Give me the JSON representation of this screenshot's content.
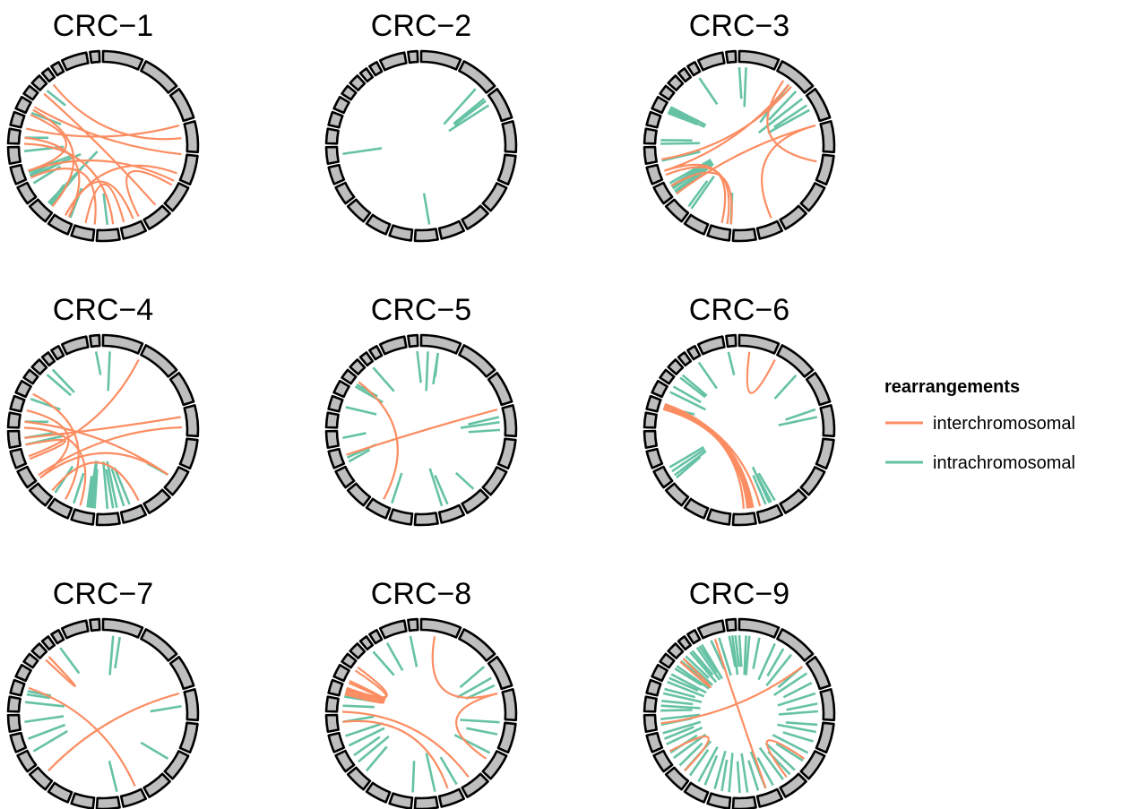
{
  "panels": [
    {
      "title": "CRC−1",
      "inter": [
        [
          5.2,
          7.0
        ],
        [
          4.8,
          10.5
        ],
        [
          7.8,
          9.5
        ],
        [
          7.3,
          10.5
        ],
        [
          10.3,
          15.5
        ],
        [
          3.5,
          20.2
        ],
        [
          3.0,
          16.0
        ],
        [
          4.0,
          17.8
        ],
        [
          13.5,
          5.0
        ],
        [
          8.2,
          15.0
        ],
        [
          17.5,
          11.2
        ],
        [
          6.2,
          19.0
        ],
        [
          13.0,
          9.0
        ],
        [
          17.0,
          13.5
        ]
      ],
      "intra": [
        [
          11.4,
          0.3
        ],
        [
          11.3,
          0.6
        ],
        [
          11.5,
          0.9
        ],
        [
          13.2,
          0.3
        ],
        [
          13.0,
          0.5
        ],
        [
          13.1,
          0.7
        ],
        [
          12.8,
          0.4
        ],
        [
          13.4,
          0.6
        ],
        [
          10.2,
          0.4
        ],
        [
          14.7,
          0.5
        ],
        [
          8.5,
          0.4
        ],
        [
          15.5,
          0.3
        ],
        [
          17.2,
          0.4
        ],
        [
          19.5,
          0.3
        ]
      ]
    },
    {
      "title": "CRC−2",
      "inter": [],
      "intra": [
        [
          2.0,
          0.5
        ],
        [
          2.3,
          0.6
        ],
        [
          1.7,
          0.6
        ],
        [
          2.1,
          0.5
        ],
        [
          8.3,
          0.4
        ],
        [
          14.5,
          0.5
        ]
      ]
    },
    {
      "title": "CRC−3",
      "inter": [
        [
          4.3,
          1.3
        ],
        [
          3.0,
          7.2
        ],
        [
          3.0,
          12.0
        ],
        [
          12.6,
          9.0
        ],
        [
          13.2,
          9.2
        ],
        [
          13.5,
          9.5
        ],
        [
          13.5,
          1.5
        ],
        [
          14.1,
          1.6
        ]
      ],
      "intra": [
        [
          1.8,
          0.5
        ],
        [
          1.5,
          0.6
        ],
        [
          2.0,
          0.7
        ],
        [
          2.3,
          0.5
        ],
        [
          2.5,
          0.6
        ],
        [
          9.0,
          0.4
        ],
        [
          12.0,
          0.6
        ],
        [
          12.2,
          0.6
        ],
        [
          12.4,
          0.6
        ],
        [
          12.6,
          0.6
        ],
        [
          12.8,
          0.6
        ],
        [
          12.1,
          0.5
        ],
        [
          12.5,
          0.5
        ],
        [
          11.2,
          0.4
        ],
        [
          11.0,
          0.5
        ],
        [
          15.0,
          0.5
        ],
        [
          15.3,
          0.4
        ],
        [
          17.2,
          0.4
        ],
        [
          17.4,
          0.5
        ],
        [
          17.6,
          0.4
        ],
        [
          17.8,
          0.5
        ],
        [
          17.3,
          0.4
        ],
        [
          17.5,
          0.4
        ],
        [
          17.7,
          0.4
        ],
        [
          24.2,
          0.5
        ],
        [
          24.0,
          0.4
        ],
        [
          21.5,
          0.4
        ],
        [
          14.0,
          0.5
        ]
      ]
    },
    {
      "title": "CRC−4",
      "inter": [
        [
          14.0,
          13.2
        ],
        [
          13.4,
          1.0
        ],
        [
          12.2,
          3.7
        ],
        [
          11.2,
          7.0
        ],
        [
          9.8,
          15.0
        ],
        [
          15.5,
          5.5
        ],
        [
          17.5,
          10.5
        ],
        [
          16.2,
          12.0
        ],
        [
          14.5,
          3.3
        ],
        [
          5.5,
          12.0
        ]
      ],
      "intra": [
        [
          7.5,
          0.5
        ],
        [
          8.0,
          0.6
        ],
        [
          8.5,
          0.6
        ],
        [
          8.2,
          0.5
        ],
        [
          7.8,
          0.5
        ],
        [
          9.1,
          0.5
        ],
        [
          9.2,
          0.6
        ],
        [
          9.0,
          0.5
        ],
        [
          9.4,
          0.4
        ],
        [
          9.3,
          0.6
        ],
        [
          14.5,
          0.4
        ],
        [
          14.0,
          0.5
        ],
        [
          11.0,
          0.4
        ],
        [
          10.0,
          0.4
        ],
        [
          15.5,
          0.3
        ],
        [
          17.0,
          0.4
        ],
        [
          20.0,
          0.4
        ],
        [
          19.5,
          0.4
        ],
        [
          23.5,
          0.3
        ],
        [
          24.2,
          0.5
        ],
        [
          5.5,
          0.3
        ]
      ]
    },
    {
      "title": "CRC−5",
      "inter": [
        [
          18.7,
          10.5
        ],
        [
          13.5,
          3.0
        ]
      ],
      "intra": [
        [
          23.9,
          0.4
        ],
        [
          24.2,
          0.5
        ],
        [
          24.5,
          0.4
        ],
        [
          0.5,
          0.3
        ],
        [
          3.5,
          0.5
        ],
        [
          3.3,
          0.4
        ],
        [
          3.8,
          0.4
        ],
        [
          6.2,
          0.3
        ],
        [
          7.5,
          0.4
        ],
        [
          7.8,
          0.5
        ],
        [
          10.0,
          0.4
        ],
        [
          13.0,
          0.3
        ],
        [
          13.3,
          0.4
        ],
        [
          14.5,
          0.3
        ],
        [
          16.5,
          0.4
        ],
        [
          18.0,
          0.4
        ],
        [
          18.3,
          0.3
        ],
        [
          20.5,
          0.4
        ]
      ]
    },
    {
      "title": "CRC−6",
      "inter": [
        [
          0.3,
          1.0
        ],
        [
          8.5,
          16.5
        ],
        [
          8.2,
          16.5
        ],
        [
          8.0,
          16.8
        ],
        [
          7.8,
          16.7
        ],
        [
          8.3,
          16.3
        ],
        [
          8.1,
          16.4
        ]
      ],
      "intra": [
        [
          1.8,
          0.4
        ],
        [
          3.0,
          0.4
        ],
        [
          3.3,
          0.5
        ],
        [
          7.0,
          0.4
        ],
        [
          7.2,
          0.4
        ],
        [
          7.5,
          0.4
        ],
        [
          7.3,
          0.5
        ],
        [
          12.5,
          0.5
        ],
        [
          12.0,
          0.4
        ],
        [
          12.2,
          0.5
        ],
        [
          12.8,
          0.5
        ],
        [
          16.5,
          0.4
        ],
        [
          17.7,
          0.5
        ],
        [
          18.0,
          0.4
        ],
        [
          19.0,
          0.4
        ],
        [
          19.4,
          0.4
        ],
        [
          21.4,
          0.4
        ],
        [
          23.0,
          0.3
        ]
      ]
    },
    {
      "title": "CRC−7",
      "inter": [
        [
          3.0,
          11.5
        ],
        [
          7.2,
          16.8
        ],
        [
          19.3,
          19.8
        ]
      ],
      "intra": [
        [
          0.5,
          0.4
        ],
        [
          0.3,
          0.5
        ],
        [
          3.5,
          0.4
        ],
        [
          5.5,
          0.4
        ],
        [
          8.0,
          0.4
        ],
        [
          12.8,
          0.5
        ],
        [
          13.5,
          0.5
        ],
        [
          14.5,
          0.5
        ],
        [
          15.8,
          0.5
        ],
        [
          16.2,
          0.3
        ],
        [
          16.5,
          0.3
        ],
        [
          21.0,
          0.4
        ]
      ]
    },
    {
      "title": "CRC−8",
      "inter": [
        [
          0.4,
          3.0
        ],
        [
          5.5,
          3.0
        ],
        [
          16.7,
          16.3
        ],
        [
          16.5,
          17.0
        ],
        [
          6.5,
          15.0
        ],
        [
          7.5,
          14.5
        ],
        [
          16.7,
          18.0
        ],
        [
          16.8,
          18.5
        ],
        [
          16.2,
          16.8
        ],
        [
          17.2,
          16.6
        ]
      ],
      "intra": [
        [
          2.0,
          0.4
        ],
        [
          2.5,
          0.5
        ],
        [
          2.8,
          0.4
        ],
        [
          4.0,
          0.5
        ],
        [
          4.5,
          0.4
        ],
        [
          5.2,
          0.5
        ],
        [
          7.0,
          0.4
        ],
        [
          8.0,
          0.5
        ],
        [
          9.0,
          0.4
        ],
        [
          11.5,
          0.4
        ],
        [
          12.0,
          0.5
        ],
        [
          12.5,
          0.4
        ],
        [
          13.0,
          0.5
        ],
        [
          13.7,
          0.5
        ],
        [
          14.5,
          0.4
        ],
        [
          15.5,
          0.4
        ],
        [
          16.5,
          0.4
        ],
        [
          16.0,
          0.4
        ],
        [
          20.5,
          0.4
        ],
        [
          22.0,
          0.4
        ],
        [
          23.0,
          0.4
        ]
      ]
    },
    {
      "title": "CRC−9",
      "inter": [
        [
          22.5,
          7.5
        ],
        [
          14.4,
          2.0
        ],
        [
          6.5,
          5.5
        ],
        [
          19.0,
          19.5
        ],
        [
          12.8,
          11.5
        ]
      ],
      "intra": [
        [
          0.0,
          0.4
        ],
        [
          0.3,
          0.5
        ],
        [
          0.6,
          0.4
        ],
        [
          1.0,
          0.5
        ],
        [
          1.3,
          0.4
        ],
        [
          1.6,
          0.5
        ],
        [
          2.0,
          0.4
        ],
        [
          2.3,
          0.5
        ],
        [
          2.7,
          0.4
        ],
        [
          3.0,
          0.5
        ],
        [
          3.4,
          0.4
        ],
        [
          3.7,
          0.5
        ],
        [
          4.1,
          0.4
        ],
        [
          4.4,
          0.5
        ],
        [
          4.8,
          0.4
        ],
        [
          5.2,
          0.5
        ],
        [
          5.6,
          0.4
        ],
        [
          6.0,
          0.5
        ],
        [
          6.3,
          0.4
        ],
        [
          6.7,
          0.5
        ],
        [
          7.1,
          0.4
        ],
        [
          7.5,
          0.5
        ],
        [
          7.9,
          0.4
        ],
        [
          8.3,
          0.5
        ],
        [
          8.7,
          0.4
        ],
        [
          9.1,
          0.5
        ],
        [
          9.5,
          0.4
        ],
        [
          9.9,
          0.5
        ],
        [
          10.3,
          0.4
        ],
        [
          10.7,
          0.5
        ],
        [
          11.1,
          0.4
        ],
        [
          11.5,
          0.5
        ],
        [
          11.9,
          0.4
        ],
        [
          12.3,
          0.5
        ],
        [
          12.7,
          0.4
        ],
        [
          13.1,
          0.5
        ],
        [
          13.5,
          0.4
        ],
        [
          13.9,
          0.5
        ],
        [
          14.3,
          0.4
        ],
        [
          14.7,
          0.5
        ],
        [
          15.1,
          0.4
        ],
        [
          15.5,
          0.5
        ],
        [
          15.9,
          0.4
        ],
        [
          16.3,
          0.5
        ],
        [
          16.7,
          0.4
        ],
        [
          17.1,
          0.5
        ],
        [
          17.5,
          0.4
        ],
        [
          17.9,
          0.5
        ],
        [
          18.3,
          0.4
        ],
        [
          18.7,
          0.5
        ],
        [
          19.1,
          0.4
        ],
        [
          19.5,
          0.5
        ],
        [
          19.9,
          0.4
        ],
        [
          20.3,
          0.5
        ],
        [
          20.7,
          0.4
        ],
        [
          21.1,
          0.5
        ],
        [
          21.5,
          0.4
        ],
        [
          21.9,
          0.5
        ],
        [
          22.3,
          0.4
        ],
        [
          22.7,
          0.5
        ],
        [
          23.1,
          0.4
        ],
        [
          23.5,
          0.5
        ],
        [
          23.9,
          0.4
        ],
        [
          24.2,
          0.5
        ]
      ]
    }
  ],
  "legend": {
    "title": "rearrangements",
    "items": [
      {
        "label": "interchromosomal",
        "color": "#FC8D62"
      },
      {
        "label": "intrachromosomal",
        "color": "#66C2A5"
      }
    ]
  },
  "colors": {
    "inter": "#FC8D62",
    "intra": "#66C2A5",
    "segment_fill": "#BEBEBE",
    "segment_stroke": "#000000"
  }
}
